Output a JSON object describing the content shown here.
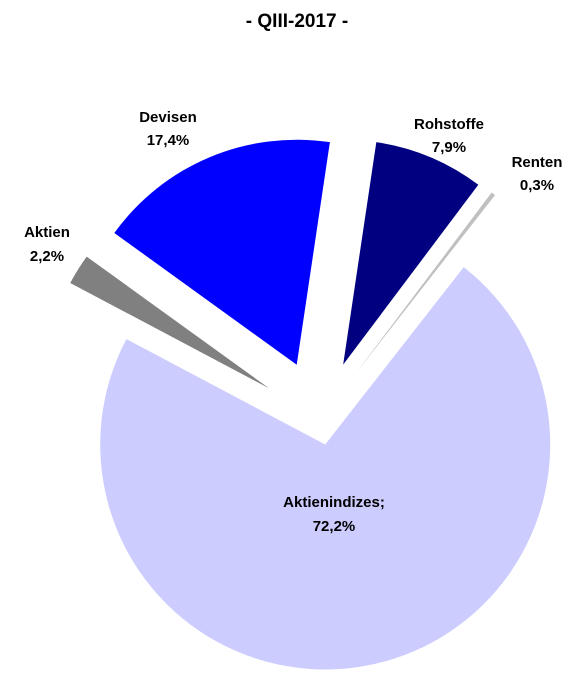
{
  "chart_data": {
    "type": "pie",
    "title": "- QIII-2017 -",
    "categories": [
      "Aktienindizes;",
      "Aktien",
      "Devisen",
      "Rohstoffe",
      "Renten"
    ],
    "values": [
      72.2,
      2.2,
      17.4,
      7.9,
      0.3
    ],
    "value_labels": [
      "72,2%",
      "2,2%",
      "17,4%",
      "7,9%",
      "0,3%"
    ],
    "colors": [
      "#ccccff",
      "#808080",
      "#0000ff",
      "#000080",
      "#c0c0c0"
    ]
  }
}
